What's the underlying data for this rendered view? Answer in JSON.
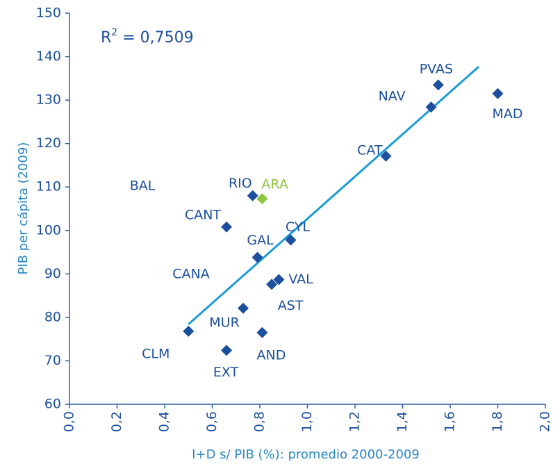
{
  "chart_data": {
    "type": "scatter",
    "x_label": "I+D s/ PIB (%): promedio 2000-2009",
    "y_label": "PIB per cápita (2009)",
    "r2": {
      "base": "R",
      "sup": "2",
      "rest": " = 0,7509"
    },
    "labels": [
      "PVAS",
      "NAV",
      "MAD",
      "CAT",
      "RIO",
      "ARA",
      "CANT",
      "CYL",
      "GAL",
      "VAL",
      "AST",
      "MUR",
      "CLM",
      "AND",
      "EXT"
    ],
    "x": [
      1.55,
      1.52,
      1.8,
      1.33,
      0.77,
      0.81,
      0.66,
      0.93,
      0.79,
      0.88,
      0.85,
      0.73,
      0.5,
      0.81,
      0.66
    ],
    "values": [
      133.5,
      128.4,
      131.5,
      117.1,
      108.0,
      107.3,
      100.8,
      97.8,
      93.8,
      88.7,
      87.6,
      82.1,
      76.8,
      76.5,
      72.4
    ],
    "point_colors": [
      "#1c4f9c",
      "#1c4f9c",
      "#1c4f9c",
      "#1c4f9c",
      "#1c4f9c",
      "#8dc63f",
      "#1c4f9c",
      "#1c4f9c",
      "#1c4f9c",
      "#1c4f9c",
      "#1c4f9c",
      "#1c4f9c",
      "#1c4f9c",
      "#1c4f9c",
      "#1c4f9c"
    ],
    "annotations": [
      "BAL",
      "CANA"
    ],
    "trendline": {
      "x": [
        0.5,
        1.72
      ],
      "y": [
        78.4,
        137.7
      ],
      "color": "#1a9bd7"
    },
    "xlim": [
      0,
      2
    ],
    "ylim": [
      60,
      150
    ],
    "xticks": [
      {
        "value": 0,
        "label": "0,0"
      },
      {
        "value": 0.2,
        "label": "0,2"
      },
      {
        "value": 0.4,
        "label": "0,4"
      },
      {
        "value": 0.6,
        "label": "0,6"
      },
      {
        "value": 0.8,
        "label": "0,8"
      },
      {
        "value": 1,
        "label": "1,0"
      },
      {
        "value": 1.2,
        "label": "1,2"
      },
      {
        "value": 1.4,
        "label": "1,4"
      },
      {
        "value": 1.6,
        "label": "1,6"
      },
      {
        "value": 1.8,
        "label": "1,8"
      },
      {
        "value": 2,
        "label": "2,0"
      }
    ],
    "yticks": [
      60,
      70,
      80,
      90,
      100,
      110,
      120,
      130,
      140,
      150
    ],
    "grid": false
  }
}
